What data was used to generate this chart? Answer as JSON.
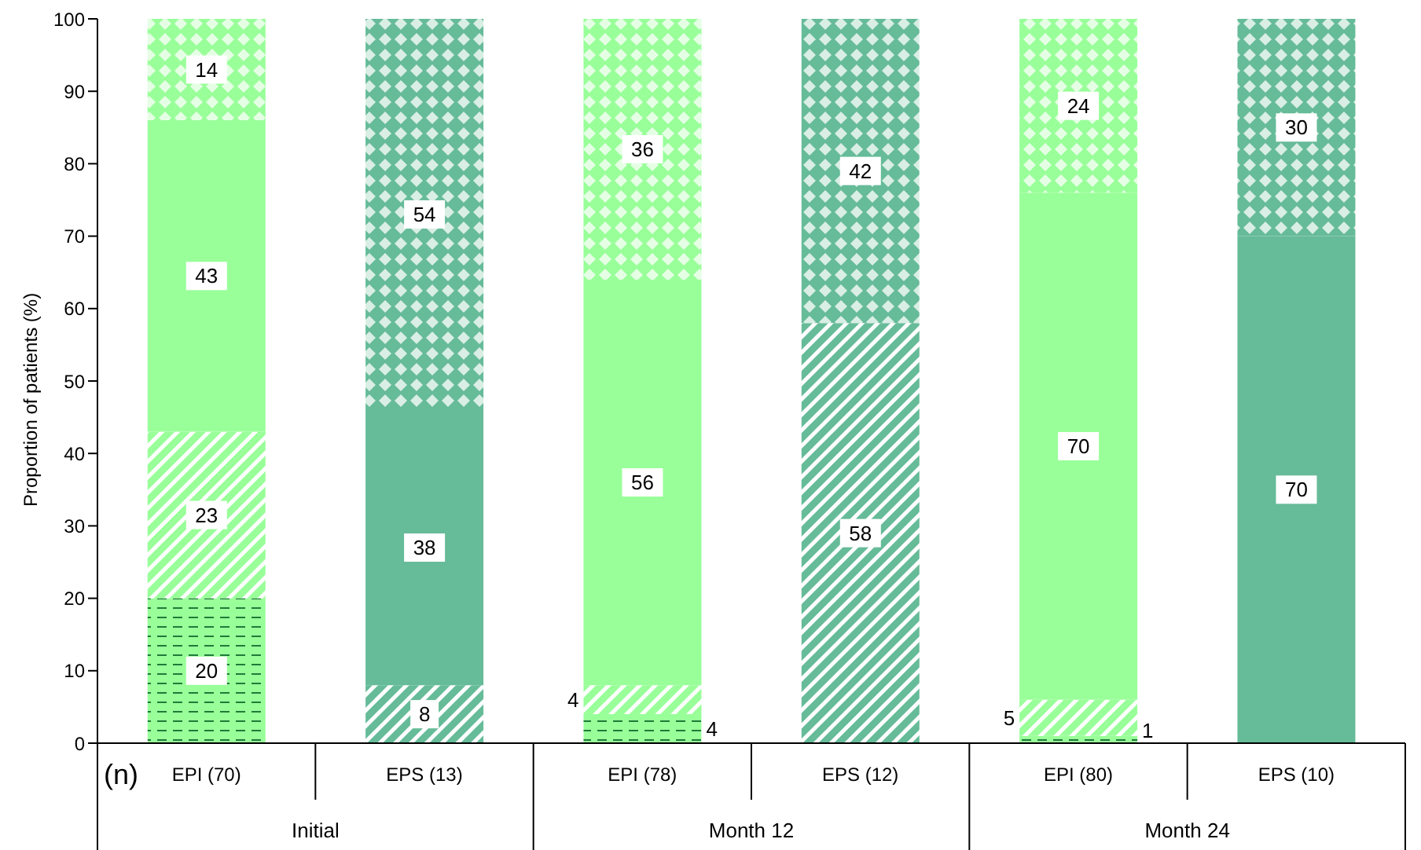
{
  "chart_data": {
    "type": "bar",
    "stacked": true,
    "ylabel": "Proportion of patients (%)",
    "categories": [
      "EPI (70)",
      "EPS (13)",
      "EPI (78)",
      "EPS (12)",
      "EPI (80)",
      "EPS (10)"
    ],
    "ylim": [
      0,
      100
    ],
    "yticks": [
      0,
      10,
      20,
      30,
      40,
      50,
      60,
      70,
      80,
      90,
      100
    ],
    "series": [
      {
        "values": [
          20,
          0,
          4,
          0,
          1,
          0
        ],
        "value_labels": [
          "20",
          null,
          "4",
          null,
          "1",
          null
        ],
        "colors": [
          "#99ff99",
          "#66bb99",
          "#99ff99",
          "#66bb99",
          "#99ff99",
          "#66bb99"
        ]
      },
      {
        "values": [
          23,
          8,
          4,
          58,
          5,
          0
        ],
        "value_labels": [
          "23",
          "8",
          "4",
          "58",
          "5",
          null
        ],
        "colors": [
          "#99ff99",
          "#66bb99",
          "#99ff99",
          "#66bb99",
          "#99ff99",
          "#66bb99"
        ]
      },
      {
        "values": [
          43,
          38,
          56,
          0,
          70,
          70
        ],
        "value_labels": [
          "43",
          "38",
          "56",
          null,
          "70",
          "70"
        ],
        "colors": [
          "#99ff99",
          "#66bb99",
          "#99ff99",
          "#66bb99",
          "#99ff99",
          "#66bb99"
        ]
      },
      {
        "values": [
          14,
          54,
          36,
          42,
          24,
          30
        ],
        "value_labels": [
          "14",
          "54",
          "36",
          "42",
          "24",
          "30"
        ],
        "colors": [
          "#99ff99",
          "#66bb99",
          "#99ff99",
          "#66bb99",
          "#99ff99",
          "#66bb99"
        ]
      }
    ],
    "annotations": [
      "(n)",
      "Initial",
      "Month 12",
      "Month 24"
    ]
  }
}
